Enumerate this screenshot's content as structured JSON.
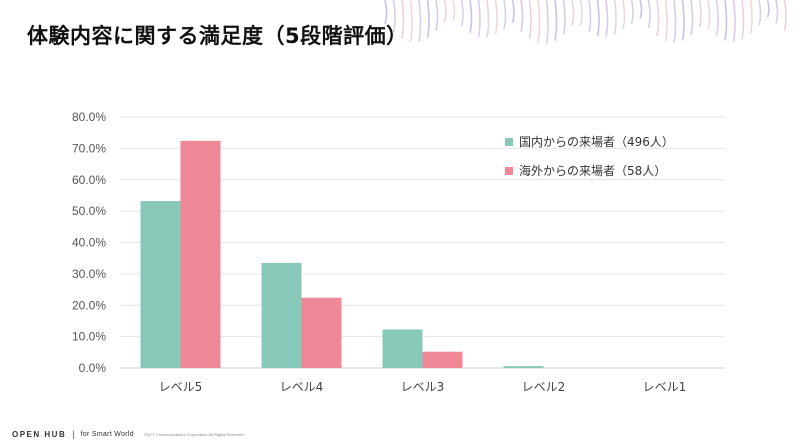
{
  "slide": {
    "title": "体験内容に関する満足度（5段階評価）"
  },
  "footer": {
    "brand": "OPEN HUB",
    "separator": "|",
    "tagline": "for Smart World",
    "copyright": "©NTT Communications Corporation All Rights Reserved."
  },
  "chart_data": {
    "type": "bar",
    "categories": [
      "レベル5",
      "レベル4",
      "レベル3",
      "レベル2",
      "レベル1"
    ],
    "series": [
      {
        "name": "国内からの来場者（496人）",
        "color": "#88c8b9",
        "values": [
          53.2,
          33.5,
          12.3,
          0.6,
          0.0
        ]
      },
      {
        "name": "海外からの来場者（58人）",
        "color": "#ee8796",
        "values": [
          72.4,
          22.4,
          5.2,
          0.0,
          0.0
        ]
      }
    ],
    "yticks": [
      "80.0%",
      "70.0%",
      "60.0%",
      "50.0%",
      "40.0%",
      "30.0%",
      "20.0%",
      "10.0%",
      "0.0%"
    ],
    "ylim": [
      0,
      80
    ],
    "grid": true,
    "legend": "top-right",
    "colors": {
      "gridline": "#e6e6e6",
      "axis": "#cccccc",
      "tick_text": "#555555"
    }
  }
}
